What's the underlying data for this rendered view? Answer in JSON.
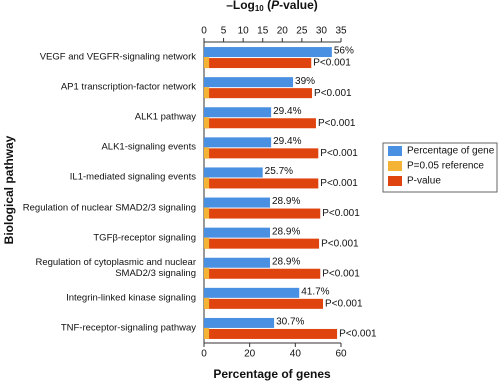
{
  "chart_data": {
    "type": "bar",
    "orientation": "horizontal",
    "x_label": "Percentage of genes",
    "x2_label_parts": [
      "–Log",
      "10",
      " (",
      "P",
      "-value)"
    ],
    "y_label": "Biological pathway",
    "categories": [
      "VEGF and VEGFR-signaling network",
      "AP1 transcription-factor network",
      "ALK1 pathway",
      "ALK1-signaling events",
      "IL1-mediated signaling events",
      "Regulation of nuclear SMAD2/3 signaling",
      "TGFβ-receptor signaling",
      "Regulation of cytoplasmic and nuclear SMAD2/3 signaling",
      "Integrin-linked kinase signaling",
      "TNF-receptor-signaling pathway"
    ],
    "xlim": [
      0,
      60
    ],
    "xticks": [
      0,
      20,
      40,
      60
    ],
    "x2lim": [
      0,
      35
    ],
    "x2ticks": [
      0,
      5,
      10,
      15,
      20,
      25,
      30,
      35
    ],
    "legend": "right",
    "series": [
      {
        "name": "Percentage of gene",
        "color": "#4a90e2",
        "values": [
          56,
          39,
          29.4,
          29.4,
          25.7,
          28.9,
          28.9,
          28.9,
          41.7,
          30.7
        ],
        "value_labels": [
          "56%",
          "39%",
          "29.4%",
          "29.4%",
          "25.7%",
          "28.9%",
          "28.9%",
          "28.9%",
          "41.7%",
          "30.7%"
        ]
      },
      {
        "name": "P=0.05 reference",
        "color": "#f5b335",
        "axis": "x2",
        "values": [
          1.3,
          1.3,
          1.3,
          1.3,
          1.3,
          1.3,
          1.3,
          1.3,
          1.3,
          1.3
        ]
      },
      {
        "name": "P-value",
        "color": "#e0440e",
        "axis": "x2",
        "values": [
          27.4,
          27.6,
          28.6,
          29.2,
          29.2,
          29.7,
          29.4,
          29.7,
          30.4,
          34
        ],
        "value_labels": [
          "P<0.001",
          "P<0.001",
          "P<0.001",
          "P<0.001",
          "P<0.001",
          "P<0.001",
          "P<0.001",
          "P<0.001",
          "P<0.001",
          "P<0.001"
        ]
      }
    ]
  }
}
